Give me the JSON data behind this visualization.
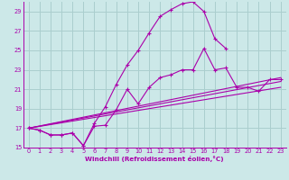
{
  "xlabel": "Windchill (Refroidissement éolien,°C)",
  "xlim": [
    -0.5,
    23.5
  ],
  "ylim": [
    15,
    30
  ],
  "yticks": [
    15,
    17,
    19,
    21,
    23,
    25,
    27,
    29
  ],
  "xticks": [
    0,
    1,
    2,
    3,
    4,
    5,
    6,
    7,
    8,
    9,
    10,
    11,
    12,
    13,
    14,
    15,
    16,
    17,
    18,
    19,
    20,
    21,
    22,
    23
  ],
  "bg_color": "#cce8e8",
  "line_color": "#aa00aa",
  "grid_color": "#aacece",
  "line1_y": [
    17.0,
    16.8,
    16.3,
    16.3,
    16.5,
    15.2,
    17.2,
    17.3,
    18.9,
    21.0,
    19.5,
    21.2,
    22.2,
    22.5,
    23.0,
    23.0,
    25.2,
    23.0,
    23.2,
    21.2,
    21.2,
    20.8,
    22.0,
    22.0
  ],
  "line2_y": [
    17.0,
    16.8,
    16.3,
    16.3,
    16.5,
    15.2,
    17.5,
    19.2,
    21.5,
    23.5,
    25.0,
    26.8,
    28.5,
    29.2,
    29.8,
    30.0,
    29.0,
    26.2,
    25.2,
    null,
    null,
    null,
    null,
    null
  ],
  "line3_x": [
    0,
    23
  ],
  "line3_y": [
    17.0,
    22.2
  ],
  "line4_x": [
    0,
    23
  ],
  "line4_y": [
    17.0,
    21.8
  ],
  "line5_x": [
    0,
    23
  ],
  "line5_y": [
    17.0,
    21.2
  ]
}
